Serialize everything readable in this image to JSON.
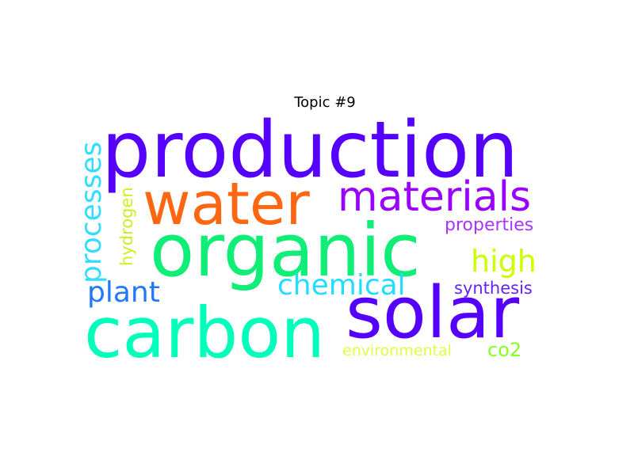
{
  "title": "Topic #9",
  "words": [
    {
      "key": "production",
      "text": "production",
      "color": "#5500ff",
      "weight": 1.0
    },
    {
      "key": "water",
      "text": "water",
      "color": "#ff6611",
      "weight": 0.78
    },
    {
      "key": "materials",
      "text": "materials",
      "color": "#9900ff",
      "weight": 0.52
    },
    {
      "key": "organic",
      "text": "organic",
      "color": "#11ee77",
      "weight": 0.92
    },
    {
      "key": "carbon",
      "text": "carbon",
      "color": "#00ffbb",
      "weight": 0.88
    },
    {
      "key": "solar",
      "text": "solar",
      "color": "#5500ff",
      "weight": 0.9
    },
    {
      "key": "processes",
      "text": "processes",
      "color": "#33ddff",
      "weight": 0.38
    },
    {
      "key": "hydrogen",
      "text": "hydrogen",
      "color": "#ccee22",
      "weight": 0.22
    },
    {
      "key": "high",
      "text": "high",
      "color": "#ccff00",
      "weight": 0.42
    },
    {
      "key": "properties",
      "text": "properties",
      "color": "#aa33ff",
      "weight": 0.25
    },
    {
      "key": "plant",
      "text": "plant",
      "color": "#2277ff",
      "weight": 0.38
    },
    {
      "key": "chemical",
      "text": "chemical",
      "color": "#22ddff",
      "weight": 0.38
    },
    {
      "key": "synthesis",
      "text": "synthesis",
      "color": "#6622ff",
      "weight": 0.24
    },
    {
      "key": "environmental",
      "text": "environmental",
      "color": "#ddff44",
      "weight": 0.2
    },
    {
      "key": "co2",
      "text": "co2",
      "color": "#88ff22",
      "weight": 0.25
    }
  ]
}
